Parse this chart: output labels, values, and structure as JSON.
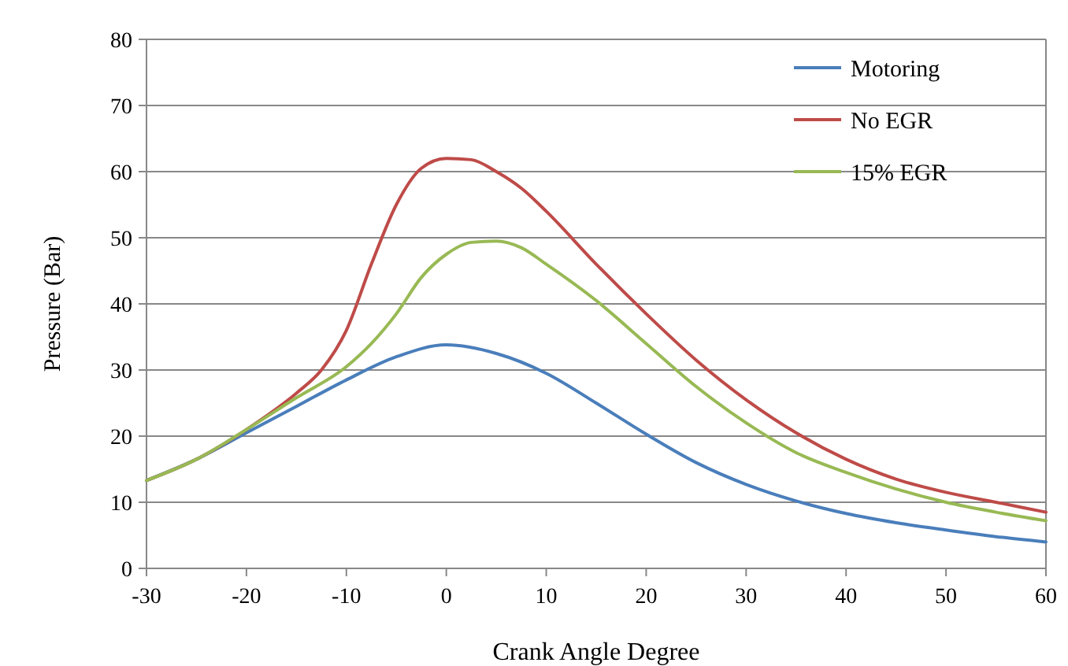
{
  "chart_data": {
    "type": "line",
    "xlabel": "Crank Angle Degree",
    "ylabel": "Pressure (Bar)",
    "xlim": [
      -30,
      60
    ],
    "xticks": [
      -30,
      -20,
      -10,
      0,
      10,
      20,
      30,
      40,
      50,
      60
    ],
    "ylim": [
      0,
      80
    ],
    "yticks": [
      0,
      10,
      20,
      30,
      40,
      50,
      60,
      70,
      80
    ],
    "grid": "y",
    "legend": "top right",
    "marker": "none",
    "line_style": "solid",
    "series": [
      {
        "name": "Motoring",
        "color": "#4a7ebb",
        "x": [
          -30,
          -25,
          -20,
          -15,
          -10,
          -5,
          0,
          5,
          10,
          15,
          20,
          25,
          30,
          35,
          40,
          45,
          50,
          55,
          60
        ],
        "values": [
          13.3,
          16.5,
          20.5,
          24.5,
          28.5,
          32,
          33.8,
          32.5,
          29.5,
          25,
          20.3,
          16,
          12.7,
          10.2,
          8.3,
          6.9,
          5.8,
          4.8,
          4.0
        ]
      },
      {
        "name": "No EGR",
        "color": "#be4b48",
        "x": [
          -30,
          -25,
          -20,
          -15,
          -12.5,
          -10,
          -7.5,
          -5,
          -2.5,
          0,
          2.5,
          5,
          7.5,
          10,
          15,
          20,
          25,
          30,
          35,
          40,
          45,
          50,
          55,
          60
        ],
        "values": [
          13.3,
          16.5,
          21,
          26.5,
          30,
          36,
          46,
          55,
          60.5,
          62,
          61.8,
          60,
          57.5,
          54,
          46,
          38.5,
          31.5,
          25.5,
          20.5,
          16.5,
          13.5,
          11.5,
          10,
          8.5
        ]
      },
      {
        "name": "15% EGR",
        "color": "#98b954",
        "x": [
          -30,
          -25,
          -20,
          -15,
          -10,
          -7.5,
          -5,
          -2.5,
          0,
          2.5,
          5,
          7.5,
          10,
          15,
          20,
          25,
          30,
          35,
          40,
          45,
          50,
          55,
          60
        ],
        "values": [
          13.3,
          16.5,
          21,
          25.8,
          30.5,
          34,
          38.5,
          44,
          47.5,
          49.3,
          49.5,
          48.5,
          46,
          40.5,
          34,
          27.5,
          22,
          17.5,
          14.5,
          12,
          10,
          8.5,
          7.2
        ]
      }
    ]
  }
}
